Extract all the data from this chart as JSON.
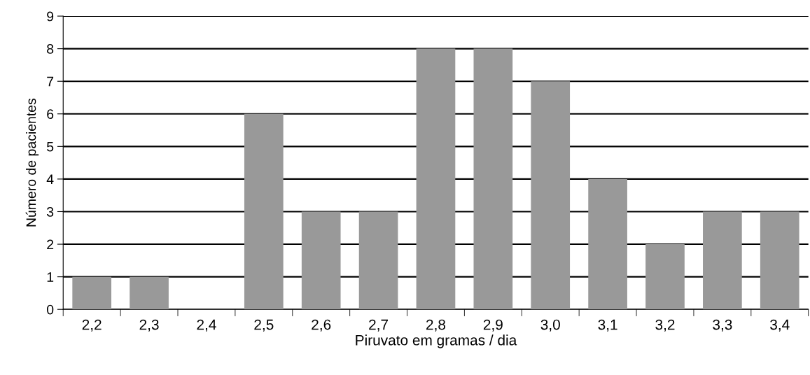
{
  "chart_data": {
    "type": "bar",
    "xlabel": "Piruvato em gramas / dia",
    "ylabel": "Número de pacientes",
    "categories": [
      "2,2",
      "2,3",
      "2,4",
      "2,5",
      "2,6",
      "2,7",
      "2,8",
      "2,9",
      "3,0",
      "3,1",
      "3,2",
      "3,3",
      "3,4"
    ],
    "values": [
      1,
      1,
      0,
      6,
      3,
      3,
      8,
      8,
      7,
      4,
      2,
      3,
      3
    ],
    "color": "#999999",
    "ylim": [
      0,
      9
    ],
    "yticks": [
      0,
      1,
      2,
      3,
      4,
      5,
      6,
      7,
      8,
      9
    ],
    "grid": "y"
  }
}
